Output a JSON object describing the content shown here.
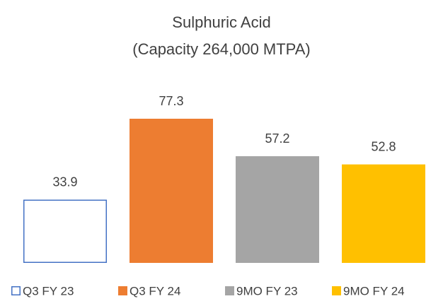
{
  "chart_data": {
    "type": "bar",
    "title": "Sulphuric Acid",
    "subtitle": "(Capacity 264,000 MTPA)",
    "series": [
      {
        "name": "Q3 FY 23",
        "color": "#4472c4",
        "fill": "#ffffff",
        "values": [
          33.9
        ]
      },
      {
        "name": "Q3 FY 24",
        "color": "#ed7d31",
        "fill": "#ed7d31",
        "values": [
          77.3
        ]
      },
      {
        "name": "9MO FY 23",
        "color": "#a5a5a5",
        "fill": "#a5a5a5",
        "values": [
          57.2
        ]
      },
      {
        "name": "9MO FY 24",
        "color": "#ffc000",
        "fill": "#ffc000",
        "values": [
          52.8
        ]
      }
    ],
    "legend": "bottom"
  }
}
